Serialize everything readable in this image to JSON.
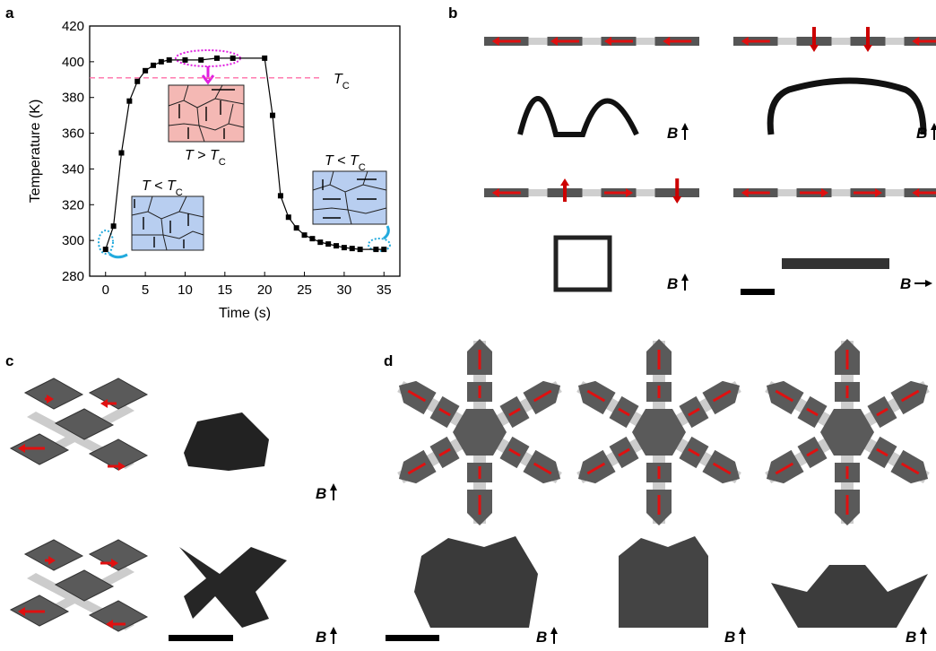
{
  "panels": {
    "a": "a",
    "b": "b",
    "c": "c",
    "d": "d"
  },
  "chart_data": {
    "type": "line",
    "x_label": "Time (s)",
    "y_label": "Temperature (K)",
    "x": [
      0,
      1,
      2,
      3,
      4,
      5,
      6,
      7,
      8,
      10,
      12,
      14,
      16,
      20,
      21,
      22,
      23,
      24,
      25,
      26,
      27,
      28,
      29,
      30,
      31,
      32,
      34,
      35
    ],
    "values": [
      295,
      308,
      349,
      378,
      389,
      395,
      398,
      400,
      401,
      401,
      401,
      402,
      402,
      402,
      370,
      325,
      313,
      307,
      303,
      301,
      299,
      298,
      297,
      296,
      295.5,
      295,
      295,
      295
    ],
    "color": "#000000",
    "xlim": [
      -2,
      37
    ],
    "ylim": [
      280,
      420
    ],
    "xticks": [
      0,
      5,
      10,
      15,
      20,
      25,
      30,
      35
    ],
    "yticks": [
      280,
      300,
      320,
      340,
      360,
      380,
      400,
      420
    ],
    "reference_line": {
      "value": 391,
      "color": "#ff6fa8",
      "label": [
        "T",
        "C"
      ]
    },
    "insets": [
      [
        "T",
        " > ",
        "T",
        "C"
      ],
      [
        "T",
        " < ",
        "T",
        "C"
      ],
      [
        "T",
        " < ",
        "T",
        "C"
      ]
    ]
  },
  "field_labels": {
    "b": [
      "B",
      "B",
      "B",
      "B"
    ],
    "c": [
      "B",
      "B"
    ],
    "d": [
      "B",
      "B",
      "B"
    ]
  }
}
